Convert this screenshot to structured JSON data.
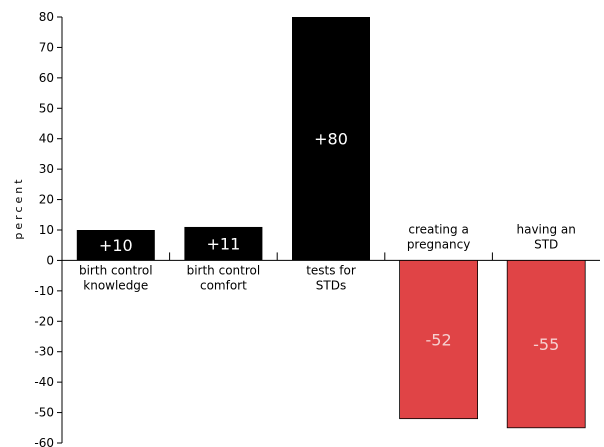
{
  "chart_data": {
    "type": "bar",
    "title": "",
    "xlabel": "",
    "ylabel": "percent",
    "ylim": [
      -60,
      80
    ],
    "yticks": [
      80,
      70,
      60,
      50,
      40,
      30,
      20,
      10,
      0,
      -10,
      -20,
      -30,
      -40,
      -50,
      -60
    ],
    "grid": false,
    "legend": "none",
    "categories": [
      [
        "birth control",
        "knowledge"
      ],
      [
        "birth control",
        "comfort"
      ],
      [
        "tests for",
        "STDs"
      ],
      [
        "creating a",
        "pregnancy"
      ],
      [
        "having an",
        "STD"
      ]
    ],
    "values": [
      10,
      11,
      80,
      -52,
      -55
    ],
    "value_labels": [
      "+10",
      "+11",
      "+80",
      "-52",
      "-55"
    ],
    "colors": {
      "positive": "#000000",
      "negative": "#e04446",
      "positive_label": "#ffffff",
      "negative_label": "#f6d0d0"
    }
  }
}
